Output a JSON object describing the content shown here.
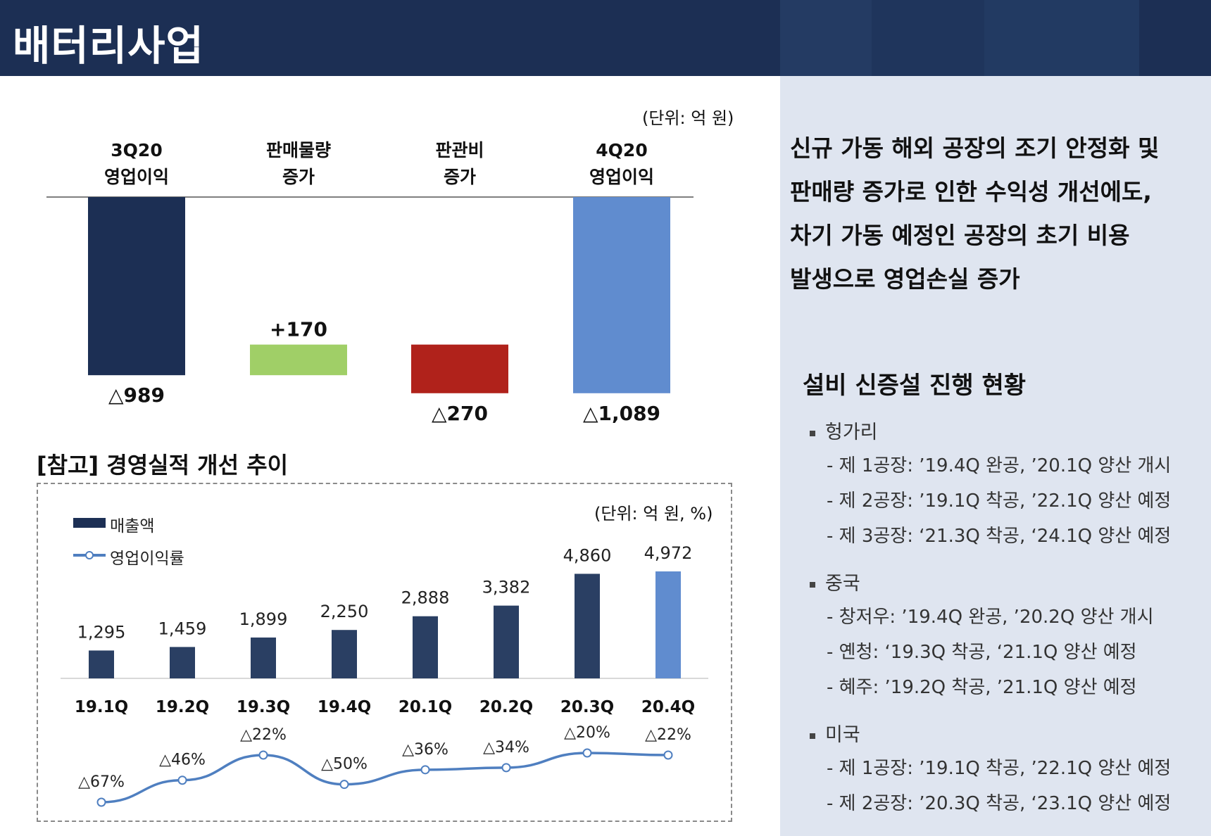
{
  "header": {
    "title": "배터리사업"
  },
  "waterfall": {
    "unit": "(단위: 억 원)",
    "columns": [
      {
        "label1": "3Q20",
        "label2": "영업이익",
        "value_label": "△989",
        "delta": -989,
        "kind": "total",
        "color": "#1c2f54"
      },
      {
        "label1": "판매물량",
        "label2": "증가",
        "value_label": "+170",
        "delta": 170,
        "kind": "step",
        "color": "#a0cf67"
      },
      {
        "label1": "판관비",
        "label2": "증가",
        "value_label": "△270",
        "delta": -270,
        "kind": "step",
        "color": "#b0221b"
      },
      {
        "label1": "4Q20",
        "label2": "영업이익",
        "value_label": "△1,089",
        "delta": -1089,
        "kind": "total",
        "color": "#608ccf"
      }
    ]
  },
  "reference": {
    "title": "[참고] 경영실적 개선 추이",
    "unit": "(단위: 억 원, %)",
    "legend": {
      "revenue": "매출액",
      "margin": "영업이익률"
    }
  },
  "chart_data": [
    {
      "type": "bar",
      "title": "",
      "categories": [
        "3Q20 영업이익",
        "판매물량 증가",
        "판관비 증가",
        "4Q20 영업이익"
      ],
      "values": [
        -989,
        170,
        -270,
        -1089
      ],
      "value_labels": [
        "△989",
        "+170",
        "△270",
        "△1,089"
      ],
      "style": "waterfall",
      "unit": "억 원"
    },
    {
      "type": "bar",
      "categories": [
        "19.1Q",
        "19.2Q",
        "19.3Q",
        "19.4Q",
        "20.1Q",
        "20.2Q",
        "20.3Q",
        "20.4Q"
      ],
      "series": [
        {
          "name": "매출액",
          "type": "bar",
          "values": [
            1295,
            1459,
            1899,
            2250,
            2888,
            3382,
            4860,
            4972
          ],
          "labels": [
            "1,295",
            "1,459",
            "1,899",
            "2,250",
            "2,888",
            "3,382",
            "4,860",
            "4,972"
          ],
          "colors": [
            "#2a3f63",
            "#2a3f63",
            "#2a3f63",
            "#2a3f63",
            "#2a3f63",
            "#2a3f63",
            "#2a3f63",
            "#608ccf"
          ]
        },
        {
          "name": "영업이익률",
          "type": "line",
          "values": [
            -67,
            -46,
            -22,
            -50,
            -36,
            -34,
            -20,
            -22
          ],
          "labels": [
            "△67%",
            "△46%",
            "△22%",
            "△50%",
            "△36%",
            "△34%",
            "△20%",
            "△22%"
          ],
          "color": "#4f7fc0"
        }
      ],
      "unit": "억 원, %"
    }
  ],
  "summary": {
    "lines": [
      "신규 가동 해외 공장의 조기 안정화 및",
      "판매량 증가로 인한 수익성 개선에도,",
      "차기 가동 예정인 공장의 초기 비용",
      "발생으로 영업손실 증가"
    ]
  },
  "facilities": {
    "title": "설비 신증설 진행 현황",
    "regions": [
      {
        "name": "헝가리",
        "items": [
          "- 제 1공장: ’19.4Q 완공, ’20.1Q 양산 개시",
          "- 제 2공장: ’19.1Q 착공, ’22.1Q 양산 예정",
          "- 제 3공장: ‘21.3Q 착공, ‘24.1Q 양산 예정"
        ]
      },
      {
        "name": "중국",
        "items": [
          "- 창저우: ’19.4Q 완공, ’20.2Q 양산 개시",
          "- 옌청: ‘19.3Q 착공, ‘21.1Q 양산 예정",
          "- 혜주: ’19.2Q 착공, ’21.1Q 양산 예정"
        ]
      },
      {
        "name": "미국",
        "items": [
          "- 제 1공장: ’19.1Q 착공, ’22.1Q 양산 예정",
          "- 제 2공장: ’20.3Q 착공, ‘23.1Q 양산 예정"
        ]
      }
    ]
  }
}
